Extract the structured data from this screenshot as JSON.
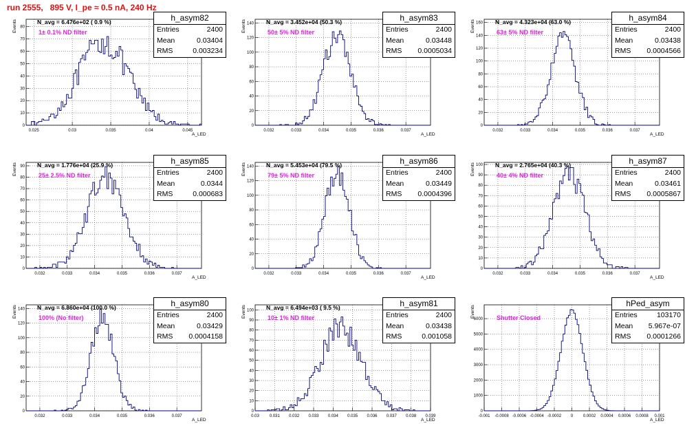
{
  "header": {
    "title": "run 2555,   895 V, I_pe ≈ 0.5 nA, 240 Hz"
  },
  "chart_data": [
    {
      "type": "bar",
      "hist": "h_asym82",
      "entries": "2400",
      "mean": "0.03404",
      "rms": "0.003234",
      "mu": 0.03404,
      "sigma": 0.003234,
      "n_avg": "N_avg = 6.476e+02 ( 0.9 %)",
      "filter": "1± 0.1% ND filter",
      "xlim": [
        0.024,
        0.0468
      ],
      "xticks": [
        "0.025",
        "0.03",
        "0.035",
        "0.04",
        "0.045"
      ],
      "ylim": [
        0,
        86
      ],
      "yticks": [
        "0",
        "10",
        "20",
        "30",
        "40",
        "50",
        "60",
        "70",
        "80"
      ],
      "ylabel": "Events",
      "xlabel": "A_LED"
    },
    {
      "type": "bar",
      "hist": "h_asym83",
      "entries": "2400",
      "mean": "0.03448",
      "rms": "0.0005034",
      "mu": 0.03448,
      "sigma": 0.0005034,
      "n_avg": "N_avg = 3.452e+04 (50.3 %)",
      "filter": "50± 5% ND filter",
      "xlim": [
        0.0315,
        0.0379
      ],
      "xticks": [
        "0.032",
        "0.033",
        "0.034",
        "0.035",
        "0.036",
        "0.037"
      ],
      "ylim": [
        0,
        145
      ],
      "yticks": [
        "0",
        "20",
        "40",
        "60",
        "80",
        "100",
        "120",
        "140"
      ],
      "ylabel": "Events",
      "xlabel": "A_LED"
    },
    {
      "type": "bar",
      "hist": "h_asym84",
      "entries": "2400",
      "mean": "0.03438",
      "rms": "0.0004566",
      "mu": 0.03438,
      "sigma": 0.0004566,
      "n_avg": "N_avg = 4.323e+04 (63.0 %)",
      "filter": "63± 5% ND filter",
      "xlim": [
        0.0315,
        0.0379
      ],
      "xticks": [
        "0.032",
        "0.033",
        "0.034",
        "0.035",
        "0.036",
        "0.037"
      ],
      "ylim": [
        0,
        165
      ],
      "yticks": [
        "0",
        "20",
        "40",
        "60",
        "80",
        "100",
        "120",
        "140",
        "160"
      ],
      "ylabel": "Events",
      "xlabel": "A_LED"
    },
    {
      "type": "bar",
      "hist": "h_asym85",
      "entries": "2400",
      "mean": "0.0344",
      "rms": "0.000683",
      "mu": 0.0344,
      "sigma": 0.000683,
      "n_avg": "N_avg = 1.776e+04 (25.9 %)",
      "filter": "25± 2.5% ND filter",
      "xlim": [
        0.0315,
        0.0379
      ],
      "xticks": [
        "0.032",
        "0.033",
        "0.034",
        "0.035",
        "0.036",
        "0.037"
      ],
      "ylim": [
        0,
        93
      ],
      "yticks": [
        "0",
        "10",
        "20",
        "30",
        "40",
        "50",
        "60",
        "70",
        "80",
        "90"
      ],
      "ylabel": "Events",
      "xlabel": "A_LED"
    },
    {
      "type": "bar",
      "hist": "h_asym86",
      "entries": "2400",
      "mean": "0.03449",
      "rms": "0.0004396",
      "mu": 0.03449,
      "sigma": 0.0004396,
      "n_avg": "N_avg = 5.453e+04 (79.5 %)",
      "filter": "79± 5% ND filter",
      "xlim": [
        0.0315,
        0.0379
      ],
      "xticks": [
        "0.032",
        "0.033",
        "0.034",
        "0.035",
        "0.036",
        "0.037"
      ],
      "ylim": [
        0,
        145
      ],
      "yticks": [
        "0",
        "20",
        "40",
        "60",
        "80",
        "100",
        "120",
        "140"
      ],
      "ylabel": "Events",
      "xlabel": "A_LED"
    },
    {
      "type": "bar",
      "hist": "h_asym87",
      "entries": "2400",
      "mean": "0.03461",
      "rms": "0.0005867",
      "mu": 0.03461,
      "sigma": 0.0005867,
      "n_avg": "N_avg = 2.765e+04 (40.3 %)",
      "filter": "40± 4% ND filter",
      "xlim": [
        0.0315,
        0.0379
      ],
      "xticks": [
        "0.032",
        "0.033",
        "0.034",
        "0.035",
        "0.036",
        "0.037"
      ],
      "ylim": [
        0,
        102
      ],
      "yticks": [
        "0",
        "10",
        "20",
        "30",
        "40",
        "50",
        "60",
        "70",
        "80",
        "90",
        "100"
      ],
      "ylabel": "Events",
      "xlabel": "A_LED"
    },
    {
      "type": "bar",
      "hist": "h_asym80",
      "entries": "2400",
      "mean": "0.03429",
      "rms": "0.0004158",
      "mu": 0.03429,
      "sigma": 0.0004158,
      "n_avg": "N_avg = 6.860e+04 (100.0 %)",
      "filter": "100% (No filter)",
      "xlim": [
        0.0315,
        0.0379
      ],
      "xticks": [
        "0.032",
        "0.033",
        "0.034",
        "0.035",
        "0.036",
        "0.037"
      ],
      "ylim": [
        0,
        145
      ],
      "yticks": [
        "0",
        "20",
        "40",
        "60",
        "80",
        "100",
        "120",
        "140"
      ],
      "ylabel": "Events",
      "xlabel": "A_LED"
    },
    {
      "type": "bar",
      "hist": "h_asym81",
      "entries": "2400",
      "mean": "0.03438",
      "rms": "0.001058",
      "mu": 0.03438,
      "sigma": 0.001058,
      "n_avg": "N_avg = 6.494e+03 ( 9.5 %)",
      "filter": "10± 1% ND filter",
      "xlim": [
        0.03,
        0.039
      ],
      "xticks": [
        "0.03",
        "0.031",
        "0.032",
        "0.033",
        "0.034",
        "0.035",
        "0.036",
        "0.037",
        "0.038",
        "0.039"
      ],
      "ylim": [
        0,
        105
      ],
      "yticks": [
        "0",
        "10",
        "20",
        "30",
        "40",
        "50",
        "60",
        "70",
        "80",
        "90",
        "100"
      ],
      "ylabel": "Events",
      "xlabel": "A_LED"
    },
    {
      "type": "bar",
      "hist": "hPed_asym",
      "entries": "103170",
      "mean": "5.967e-07",
      "rms": "0.0001266",
      "mu": 0.0,
      "sigma": 0.0001266,
      "n_avg": "",
      "filter": "Shutter Closed",
      "xlim": [
        -0.001,
        0.001
      ],
      "xticks": [
        "-0.001",
        "-0.0008",
        "-0.0006",
        "-0.0004",
        "-0.0002",
        "0",
        "0.0002",
        "0.0004",
        "0.0006",
        "0.0008",
        "0.001"
      ],
      "ylim": [
        0,
        6900
      ],
      "yticks": [
        "0",
        "1000",
        "2000",
        "3000",
        "4000",
        "5000",
        "6000"
      ],
      "ylabel": "Events",
      "xlabel": "A_LED"
    }
  ]
}
